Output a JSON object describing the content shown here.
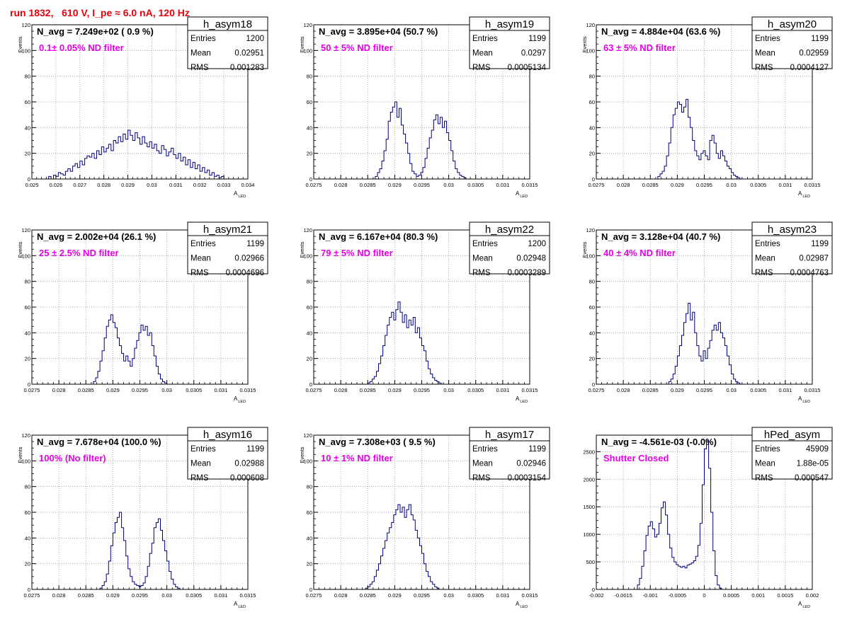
{
  "run_title": "run 1832,   610 V, I_pe ≈ 6.0 nA, 120 Hz",
  "colors": {
    "histogram_line": "#00007f",
    "annotation": "#e600e6",
    "title": "#e8000b",
    "grid": "#999999"
  },
  "stats_labels": {
    "entries": "Entries",
    "mean": "Mean",
    "rms": "RMS"
  },
  "chart_data": [
    {
      "type": "bar",
      "name": "h_asym18",
      "navg": "N_avg = 7.249e+02 ( 0.9 %)",
      "annotation": "0.1± 0.05% ND filter",
      "stats": {
        "entries": "1200",
        "mean": "0.02951",
        "rms": "0.001283"
      },
      "ylabel": "Events",
      "xlabel": "A",
      "xlabel_sub": "LED",
      "xlim": [
        0.025,
        0.034
      ],
      "ylim": [
        0,
        120
      ],
      "xticks": [
        0.025,
        0.026,
        0.027,
        0.028,
        0.029,
        0.03,
        0.031,
        0.032,
        0.033,
        0.034
      ],
      "xtick_labels": [
        "0.025",
        "0.026",
        "0.027",
        "0.028",
        "0.029",
        "0.03",
        "0.031",
        "0.032",
        "0.033",
        "0.034"
      ],
      "yticks": [
        0,
        20,
        40,
        60,
        80,
        100,
        120
      ],
      "ytick_labels": [
        "0",
        "20",
        "40",
        "60",
        "80",
        "100",
        "120"
      ],
      "bin_start": 0.0257,
      "bin_width": 0.0001,
      "values": [
        2,
        0,
        3,
        2,
        5,
        4,
        3,
        6,
        8,
        6,
        10,
        12,
        9,
        14,
        11,
        16,
        18,
        17,
        20,
        16,
        22,
        19,
        25,
        21,
        24,
        27,
        22,
        30,
        28,
        33,
        29,
        35,
        31,
        38,
        34,
        30,
        36,
        32,
        27,
        33,
        28,
        25,
        29,
        24,
        27,
        22,
        20,
        26,
        23,
        18,
        21,
        24,
        19,
        16,
        20,
        14,
        17,
        11,
        15,
        9,
        13,
        8,
        11,
        6,
        9,
        5,
        7,
        3,
        5,
        2,
        3,
        1,
        2
      ]
    },
    {
      "type": "bar",
      "name": "h_asym19",
      "navg": "N_avg = 3.895e+04 (50.7 %)",
      "annotation": "50 ± 5% ND filter",
      "stats": {
        "entries": "1199",
        "mean": "0.0297",
        "rms": "0.0005134"
      },
      "ylabel": "Events",
      "xlabel": "A",
      "xlabel_sub": "LED",
      "xlim": [
        0.0275,
        0.0315
      ],
      "ylim": [
        0,
        120
      ],
      "xticks": [
        0.0275,
        0.028,
        0.0285,
        0.029,
        0.0295,
        0.03,
        0.0305,
        0.031,
        0.0315
      ],
      "xtick_labels": [
        "0.0275",
        "0.028",
        "0.0285",
        "0.029",
        "0.0295",
        "0.03",
        "0.0305",
        "0.031",
        "0.0315"
      ],
      "yticks": [
        0,
        20,
        40,
        60,
        80,
        100,
        120
      ],
      "ytick_labels": [
        "0",
        "20",
        "40",
        "60",
        "80",
        "100",
        "120"
      ],
      "bin_start": 0.02864,
      "bin_width": 4e-05,
      "values": [
        2,
        5,
        8,
        14,
        22,
        31,
        45,
        52,
        56,
        60,
        48,
        55,
        42,
        35,
        28,
        20,
        12,
        6,
        4,
        2,
        3,
        5,
        9,
        16,
        24,
        32,
        38,
        46,
        50,
        43,
        48,
        40,
        45,
        36,
        30,
        22,
        14,
        8,
        5,
        3,
        2,
        1
      ]
    },
    {
      "type": "bar",
      "name": "h_asym20",
      "navg": "N_avg = 4.884e+04 (63.6 %)",
      "annotation": "63 ± 5% ND filter",
      "stats": {
        "entries": "1199",
        "mean": "0.02959",
        "rms": "0.0004127"
      },
      "ylabel": "Events",
      "xlabel": "A",
      "xlabel_sub": "LED",
      "xlim": [
        0.0275,
        0.0315
      ],
      "ylim": [
        0,
        120
      ],
      "xticks": [
        0.0275,
        0.028,
        0.0285,
        0.029,
        0.0295,
        0.03,
        0.0305,
        0.031,
        0.0315
      ],
      "xtick_labels": [
        "0.0275",
        "0.028",
        "0.0285",
        "0.029",
        "0.0295",
        "0.03",
        "0.0305",
        "0.031",
        "0.0315"
      ],
      "yticks": [
        0,
        20,
        40,
        60,
        80,
        100,
        120
      ],
      "ytick_labels": [
        "0",
        "20",
        "40",
        "60",
        "80",
        "100",
        "120"
      ],
      "bin_start": 0.02864,
      "bin_width": 4e-05,
      "values": [
        2,
        4,
        6,
        10,
        18,
        28,
        40,
        50,
        55,
        60,
        58,
        52,
        56,
        62,
        48,
        40,
        30,
        22,
        18,
        15,
        20,
        22,
        18,
        15,
        30,
        34,
        28,
        20,
        16,
        22,
        18,
        14,
        10,
        8,
        5,
        3,
        2,
        1
      ]
    },
    {
      "type": "bar",
      "name": "h_asym21",
      "navg": "N_avg = 2.002e+04 (26.1 %)",
      "annotation": "25 ± 2.5% ND filter",
      "stats": {
        "entries": "1199",
        "mean": "0.02966",
        "rms": "0.0004696"
      },
      "ylabel": "Events",
      "xlabel": "A",
      "xlabel_sub": "LED",
      "xlim": [
        0.0275,
        0.0315
      ],
      "ylim": [
        0,
        120
      ],
      "xticks": [
        0.0275,
        0.028,
        0.0285,
        0.029,
        0.0295,
        0.03,
        0.0305,
        0.031,
        0.0315
      ],
      "xtick_labels": [
        "0.0275",
        "0.028",
        "0.0285",
        "0.029",
        "0.0295",
        "0.03",
        "0.0305",
        "0.031",
        "0.0315"
      ],
      "yticks": [
        0,
        20,
        40,
        60,
        80,
        100,
        120
      ],
      "ytick_labels": [
        "0",
        "20",
        "40",
        "60",
        "80",
        "100",
        "120"
      ],
      "bin_start": 0.02864,
      "bin_width": 4e-05,
      "values": [
        2,
        5,
        10,
        18,
        26,
        36,
        45,
        50,
        54,
        48,
        44,
        36,
        30,
        24,
        18,
        22,
        18,
        14,
        20,
        28,
        34,
        40,
        46,
        42,
        45,
        38,
        40,
        30,
        22,
        14,
        8,
        4,
        2,
        1
      ]
    },
    {
      "type": "bar",
      "name": "h_asym22",
      "navg": "N_avg = 6.167e+04 (80.3 %)",
      "annotation": "79 ± 5% ND filter",
      "stats": {
        "entries": "1200",
        "mean": "0.02948",
        "rms": "0.0003289"
      },
      "ylabel": "Events",
      "xlabel": "A",
      "xlabel_sub": "LED",
      "xlim": [
        0.0275,
        0.0315
      ],
      "ylim": [
        0,
        120
      ],
      "xticks": [
        0.0275,
        0.028,
        0.0285,
        0.029,
        0.0295,
        0.03,
        0.0305,
        0.031,
        0.0315
      ],
      "xtick_labels": [
        "0.0275",
        "0.028",
        "0.0285",
        "0.029",
        "0.0295",
        "0.03",
        "0.0305",
        "0.031",
        "0.0315"
      ],
      "yticks": [
        0,
        20,
        40,
        60,
        80,
        100,
        120
      ],
      "ytick_labels": [
        "0",
        "20",
        "40",
        "60",
        "80",
        "100",
        "120"
      ],
      "bin_start": 0.0285,
      "bin_width": 4e-05,
      "values": [
        1,
        2,
        4,
        6,
        10,
        16,
        22,
        30,
        38,
        46,
        52,
        56,
        50,
        58,
        64,
        56,
        48,
        54,
        44,
        50,
        46,
        52,
        40,
        44,
        36,
        30,
        26,
        18,
        12,
        8,
        5,
        3,
        2,
        1
      ]
    },
    {
      "type": "bar",
      "name": "h_asym23",
      "navg": "N_avg = 3.128e+04 (40.7 %)",
      "annotation": "40 ± 4% ND filter",
      "stats": {
        "entries": "1199",
        "mean": "0.02987",
        "rms": "0.0004763"
      },
      "ylabel": "Events",
      "xlabel": "A",
      "xlabel_sub": "LED",
      "xlim": [
        0.0275,
        0.0315
      ],
      "ylim": [
        0,
        120
      ],
      "xticks": [
        0.0275,
        0.028,
        0.0285,
        0.029,
        0.0295,
        0.03,
        0.0305,
        0.031,
        0.0315
      ],
      "xtick_labels": [
        "0.0275",
        "0.028",
        "0.0285",
        "0.029",
        "0.0295",
        "0.03",
        "0.0305",
        "0.031",
        "0.0315"
      ],
      "yticks": [
        0,
        20,
        40,
        60,
        80,
        100,
        120
      ],
      "ytick_labels": [
        "0",
        "20",
        "40",
        "60",
        "80",
        "100",
        "120"
      ],
      "bin_start": 0.02884,
      "bin_width": 4e-05,
      "values": [
        2,
        4,
        8,
        14,
        22,
        30,
        38,
        48,
        55,
        63,
        50,
        56,
        40,
        30,
        22,
        18,
        26,
        20,
        28,
        34,
        42,
        46,
        42,
        48,
        40,
        36,
        30,
        22,
        15,
        8,
        4,
        2,
        1
      ]
    },
    {
      "type": "bar",
      "name": "h_asym16",
      "navg": "N_avg = 7.678e+04 (100.0 %)",
      "annotation": "100% (No filter)",
      "stats": {
        "entries": "1199",
        "mean": "0.02988",
        "rms": "0.000608"
      },
      "ylabel": "Events",
      "xlabel": "A",
      "xlabel_sub": "LED",
      "xlim": [
        0.0275,
        0.0315
      ],
      "ylim": [
        0,
        120
      ],
      "xticks": [
        0.0275,
        0.028,
        0.0285,
        0.029,
        0.0295,
        0.03,
        0.0305,
        0.031,
        0.0315
      ],
      "xtick_labels": [
        "0.0275",
        "0.028",
        "0.0285",
        "0.029",
        "0.0295",
        "0.03",
        "0.0305",
        "0.031",
        "0.0315"
      ],
      "yticks": [
        0,
        20,
        40,
        60,
        80,
        100,
        120
      ],
      "ytick_labels": [
        "0",
        "20",
        "40",
        "60",
        "80",
        "100",
        "120"
      ],
      "bin_start": 0.02876,
      "bin_width": 4e-05,
      "values": [
        1,
        3,
        6,
        12,
        22,
        34,
        44,
        52,
        56,
        60,
        48,
        38,
        26,
        16,
        10,
        6,
        4,
        3,
        2,
        3,
        5,
        10,
        18,
        28,
        36,
        48,
        52,
        55,
        46,
        38,
        30,
        22,
        14,
        8,
        4,
        2,
        1
      ]
    },
    {
      "type": "bar",
      "name": "h_asym17",
      "navg": "N_avg = 7.308e+03 ( 9.5 %)",
      "annotation": "10 ± 1% ND filter",
      "stats": {
        "entries": "1199",
        "mean": "0.02946",
        "rms": "0.0003154"
      },
      "ylabel": "Events",
      "xlabel": "A",
      "xlabel_sub": "LED",
      "xlim": [
        0.0275,
        0.0315
      ],
      "ylim": [
        0,
        120
      ],
      "xticks": [
        0.0275,
        0.028,
        0.0285,
        0.029,
        0.0295,
        0.03,
        0.0305,
        0.031,
        0.0315
      ],
      "xtick_labels": [
        "0.0275",
        "0.028",
        "0.0285",
        "0.029",
        "0.0295",
        "0.03",
        "0.0305",
        "0.031",
        "0.0315"
      ],
      "yticks": [
        0,
        20,
        40,
        60,
        80,
        100,
        120
      ],
      "ytick_labels": [
        "0",
        "20",
        "40",
        "60",
        "80",
        "100",
        "120"
      ],
      "bin_start": 0.02846,
      "bin_width": 4e-05,
      "values": [
        1,
        2,
        4,
        6,
        10,
        15,
        20,
        26,
        32,
        38,
        44,
        48,
        52,
        58,
        62,
        66,
        60,
        64,
        56,
        62,
        66,
        58,
        54,
        46,
        40,
        34,
        28,
        20,
        14,
        10,
        6,
        4,
        2,
        1
      ]
    },
    {
      "type": "bar",
      "name": "hPed_asym",
      "navg": "N_avg = -4.561e-03 (-0.0%)",
      "annotation": "Shutter Closed",
      "stats": {
        "entries": "45909",
        "mean": "1.88e-05",
        "rms": "0.000547"
      },
      "ylabel": "",
      "xlabel": "A",
      "xlabel_sub": "LED",
      "xlim": [
        -0.002,
        0.002
      ],
      "ylim": [
        0,
        2800
      ],
      "xticks": [
        -0.002,
        -0.0015,
        -0.001,
        -0.0005,
        0,
        0.0005,
        0.001,
        0.0015,
        0.002
      ],
      "xtick_labels": [
        "-0.002",
        "-0.0015",
        "-0.001",
        "-0.0005",
        "0",
        "0.0005",
        "0.001",
        "0.0015",
        "0.002"
      ],
      "yticks": [
        0,
        500,
        1000,
        1500,
        2000,
        2500
      ],
      "ytick_labels": [
        "0",
        "500",
        "1000",
        "1500",
        "2000",
        "2500"
      ],
      "bin_start": -0.00124,
      "bin_width": 4e-05,
      "values": [
        80,
        200,
        420,
        700,
        980,
        1150,
        1230,
        1100,
        950,
        1000,
        1200,
        1480,
        1590,
        1350,
        1000,
        750,
        580,
        500,
        450,
        420,
        400,
        420,
        390,
        440,
        460,
        480,
        520,
        600,
        800,
        1200,
        1900,
        2550,
        2700,
        2200,
        1400,
        700,
        250,
        80,
        20
      ]
    }
  ]
}
